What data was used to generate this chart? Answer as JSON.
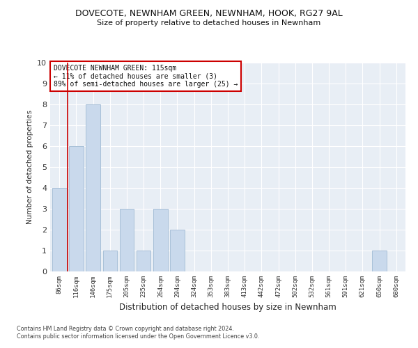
{
  "title": "DOVECOTE, NEWNHAM GREEN, NEWNHAM, HOOK, RG27 9AL",
  "subtitle": "Size of property relative to detached houses in Newnham",
  "xlabel": "Distribution of detached houses by size in Newnham",
  "ylabel": "Number of detached properties",
  "bin_labels": [
    "86sqm",
    "116sqm",
    "146sqm",
    "175sqm",
    "205sqm",
    "235sqm",
    "264sqm",
    "294sqm",
    "324sqm",
    "353sqm",
    "383sqm",
    "413sqm",
    "442sqm",
    "472sqm",
    "502sqm",
    "532sqm",
    "561sqm",
    "591sqm",
    "621sqm",
    "650sqm",
    "680sqm"
  ],
  "bar_values": [
    4,
    6,
    8,
    1,
    3,
    1,
    3,
    2,
    0,
    0,
    0,
    0,
    0,
    0,
    0,
    0,
    0,
    0,
    0,
    1,
    0
  ],
  "bar_color": "#c9d9ec",
  "bar_edgecolor": "#a8c0d8",
  "ylim": [
    0,
    10
  ],
  "yticks": [
    0,
    1,
    2,
    3,
    4,
    5,
    6,
    7,
    8,
    9,
    10
  ],
  "annotation_title": "DOVECOTE NEWNHAM GREEN: 115sqm",
  "annotation_line1": "← 11% of detached houses are smaller (3)",
  "annotation_line2": "89% of semi-detached houses are larger (25) →",
  "annotation_box_color": "#ffffff",
  "annotation_box_edgecolor": "#cc0000",
  "background_color": "#e8eef5",
  "grid_color": "#ffffff",
  "fig_background": "#ffffff",
  "footer_line1": "Contains HM Land Registry data © Crown copyright and database right 2024.",
  "footer_line2": "Contains public sector information licensed under the Open Government Licence v3.0."
}
